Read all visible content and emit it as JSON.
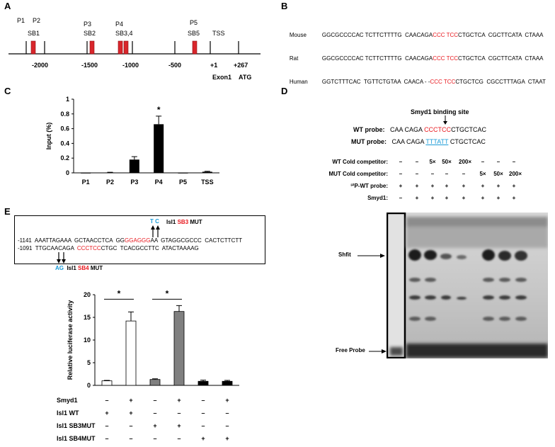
{
  "panelA": {
    "letter": "A",
    "primers": [
      "P1",
      "P2",
      "P3",
      "P4",
      "P5"
    ],
    "sites": [
      "SB1",
      "SB2",
      "SB3,4",
      "SB5"
    ],
    "tss": "TSS",
    "ticks": [
      "-2000",
      "-1500",
      "-1000",
      "-500",
      "+1",
      "+267"
    ],
    "exon": "Exon1",
    "atg": "ATG"
  },
  "panelB": {
    "letter": "B",
    "rows": [
      {
        "species": "Mouse",
        "pre": "GGCGCCCCAC TCTTCTTTTG  CAACAGA",
        "motif": "CCC TCC",
        "post": "CTGCTCA  CGCTTCATA  CTAAA"
      },
      {
        "species": "Rat",
        "pre": "GGCGCCCCAC TCTTCTTTTG  CAACAGA",
        "motif": "CCC TCC",
        "post": "CTGCTCA  CGCTTCATA  CTAAA"
      },
      {
        "species": "Human",
        "pre": "GGTCTTTCAC  TGTTCTGTAA  CAACA - -",
        "motif": "CCC TCC",
        "post": "CTGCTCG  CGCCTTTAGA  CTAAT"
      }
    ]
  },
  "panelC": {
    "letter": "C",
    "star": "*",
    "chart_data": {
      "type": "bar",
      "categories": [
        "P1",
        "P2",
        "P3",
        "P4",
        "P5",
        "TSS"
      ],
      "values": [
        0.0,
        0.005,
        0.18,
        0.66,
        0.0,
        0.015
      ],
      "errors": [
        0.0,
        0.003,
        0.04,
        0.11,
        0.0,
        0.006
      ],
      "ylabel": "Input (%)",
      "ylim": [
        0,
        1
      ],
      "yticks": [
        "0",
        "0.2",
        "0.4",
        "0.6",
        "0.8",
        "1"
      ],
      "annotations": [
        {
          "category": "P4",
          "text": "*"
        }
      ]
    }
  },
  "panelD": {
    "letter": "D",
    "site_label": "Smyd1 binding site",
    "wt_probe_label": "WT probe:",
    "wt_pre": "CAA CAGA",
    "wt_motif": "CCCTCC",
    "wt_post": "CTGCTCAC",
    "mut_probe_label": "MUT probe:",
    "mut_pre": "CAA CAGA",
    "mut_motif": "TTTATT",
    "mut_post": "CTGCTCAC",
    "rows": [
      {
        "label": "WT Cold competitor:",
        "cells": [
          "–",
          "–",
          "5×",
          "50×",
          "200×",
          "–",
          "–",
          "–"
        ]
      },
      {
        "label": "MUT  Cold competitor:",
        "cells": [
          "–",
          "–",
          "–",
          "–",
          "–",
          "5×",
          "50×",
          "200×"
        ]
      },
      {
        "label": "³²P-WT probe:",
        "cells": [
          "+",
          "+",
          "+",
          "+",
          "+",
          "+",
          "+",
          "+"
        ]
      },
      {
        "label": "Smyd1:",
        "cells": [
          "–",
          "+",
          "+",
          "+",
          "+",
          "+",
          "+",
          "+"
        ]
      }
    ],
    "shift_label": "Shfit",
    "free_label": "Free Probe"
  },
  "panelE": {
    "letter": "E",
    "seq_line1_num": "-1141",
    "seq_line1_a": "AAATTAGAAA  GCTAACCTCA  GG",
    "seq_line1_motif": "GGAGGG",
    "seq_line1_b": "AA  GTAGGCGCCC  CACTCTTCTT",
    "seq_line2_num": "-1091",
    "seq_line2_a": "TTGCAACAGA  ",
    "seq_line2_motif": "CCCTCC",
    "seq_line2_b": "CTGC  TCACGCCTTC  ATACTAAAAG",
    "sb3_sub": "T C",
    "sb3_pre": "Isl1 ",
    "sb3_site": "SB3",
    "sb3_post": " MUT",
    "sb4_sub": "AG",
    "sb4_pre": "Isl1 ",
    "sb4_site": "SB4",
    "sb4_post": " MUT",
    "chart_data": {
      "type": "bar",
      "categories": [
        "1",
        "2",
        "3",
        "4",
        "5",
        "6"
      ],
      "values": [
        1.0,
        14.2,
        1.3,
        16.3,
        0.9,
        0.9
      ],
      "errors": [
        0.1,
        2.0,
        0.15,
        1.3,
        0.25,
        0.2
      ],
      "colors": [
        "#ffffff",
        "#ffffff",
        "#808080",
        "#808080",
        "#000000",
        "#000000"
      ],
      "ylabel": "Relative luciferase activity",
      "ylim": [
        0,
        20
      ],
      "yticks": [
        "0",
        "5",
        "10",
        "15",
        "20"
      ],
      "annotations": [
        {
          "pair": [
            1,
            2
          ],
          "text": "*"
        },
        {
          "pair": [
            3,
            4
          ],
          "text": "*"
        }
      ]
    },
    "conditions": [
      {
        "label": "Smyd1",
        "cells": [
          "–",
          "+",
          "–",
          "+",
          "–",
          "+"
        ]
      },
      {
        "label": "Isl1 WT",
        "cells": [
          "+",
          "+",
          "–",
          "–",
          "–",
          "–"
        ]
      },
      {
        "label": "Isl1 SB3MUT",
        "cells": [
          "–",
          "–",
          "+",
          "+",
          "–",
          "–"
        ]
      },
      {
        "label": "Isl1 SB4MUT",
        "cells": [
          "–",
          "–",
          "–",
          "–",
          "+",
          "+"
        ]
      }
    ]
  }
}
